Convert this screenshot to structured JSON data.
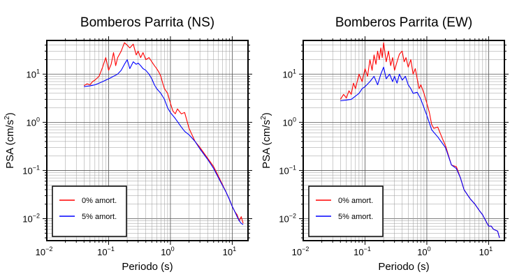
{
  "chart_data": [
    {
      "type": "line",
      "title": "Bomberos Parrita (NS)",
      "xlabel": "Periodo (s)",
      "ylabel_base": "PSA (cm/s",
      "ylabel_sup": "2",
      "ylabel_end": ")",
      "xscale": "log",
      "yscale": "log",
      "xlim": [
        0.01,
        18
      ],
      "ylim": [
        0.0035,
        50
      ],
      "grid": true,
      "legend_position": "bottom-left",
      "xticks": [
        {
          "base": "10",
          "exp": "−2",
          "value": 0.01
        },
        {
          "base": "10",
          "exp": "−1",
          "value": 0.1
        },
        {
          "base": "10",
          "exp": "0",
          "value": 1
        },
        {
          "base": "10",
          "exp": "1",
          "value": 10
        }
      ],
      "yticks": [
        {
          "base": "10",
          "exp": "−2",
          "value": 0.01
        },
        {
          "base": "10",
          "exp": "−1",
          "value": 0.1
        },
        {
          "base": "10",
          "exp": "0",
          "value": 1
        },
        {
          "base": "10",
          "exp": "1",
          "value": 10
        }
      ],
      "series": [
        {
          "name": "0% amort.",
          "color": "#ff0000",
          "x": [
            0.04,
            0.045,
            0.05,
            0.055,
            0.06,
            0.07,
            0.08,
            0.09,
            0.1,
            0.11,
            0.12,
            0.13,
            0.14,
            0.16,
            0.18,
            0.2,
            0.22,
            0.25,
            0.28,
            0.3,
            0.33,
            0.36,
            0.4,
            0.45,
            0.5,
            0.55,
            0.6,
            0.65,
            0.7,
            0.75,
            0.8,
            0.9,
            1.0,
            1.1,
            1.2,
            1.3,
            1.5,
            1.7,
            2.0,
            2.5,
            3.0,
            4.0,
            5.0,
            6.0,
            7.0,
            8.0,
            9.0,
            10.0,
            11.0,
            12.0,
            13.0,
            14.0,
            15.0
          ],
          "y": [
            5.8,
            6.3,
            6.0,
            7.0,
            7.5,
            9.0,
            14.0,
            22.0,
            12.0,
            16.0,
            28.0,
            15.0,
            22.0,
            30.0,
            45.0,
            40.0,
            35.0,
            42.0,
            25.0,
            30.0,
            22.0,
            28.0,
            20.0,
            22.0,
            18.0,
            15.0,
            13.0,
            11.0,
            9.0,
            6.5,
            5.0,
            4.0,
            2.5,
            1.7,
            1.5,
            1.9,
            1.5,
            1.6,
            0.75,
            0.4,
            0.3,
            0.18,
            0.12,
            0.075,
            0.05,
            0.035,
            0.025,
            0.018,
            0.014,
            0.012,
            0.009,
            0.011,
            0.008
          ]
        },
        {
          "name": "5% amort.",
          "color": "#0000ff",
          "x": [
            0.04,
            0.05,
            0.06,
            0.07,
            0.08,
            0.09,
            0.1,
            0.12,
            0.14,
            0.16,
            0.18,
            0.2,
            0.22,
            0.25,
            0.28,
            0.3,
            0.33,
            0.36,
            0.4,
            0.45,
            0.5,
            0.55,
            0.6,
            0.7,
            0.8,
            0.9,
            1.0,
            1.2,
            1.5,
            1.7,
            2.0,
            2.5,
            3.0,
            4.0,
            5.0,
            6.0,
            7.0,
            8.0,
            9.0,
            10.0,
            11.0,
            12.0,
            13.0,
            14.0,
            15.0
          ],
          "y": [
            5.5,
            5.7,
            6.0,
            6.5,
            7.0,
            7.5,
            8.0,
            9.0,
            10.0,
            12.0,
            16.0,
            20.0,
            13.0,
            18.0,
            16.0,
            17.0,
            15.0,
            13.0,
            12.0,
            10.0,
            8.0,
            6.0,
            5.0,
            4.0,
            3.0,
            2.0,
            1.6,
            1.2,
            0.8,
            0.65,
            0.55,
            0.4,
            0.28,
            0.17,
            0.11,
            0.07,
            0.048,
            0.035,
            0.025,
            0.018,
            0.014,
            0.011,
            0.009,
            0.008,
            0.0075
          ]
        }
      ]
    },
    {
      "type": "line",
      "title": "Bomberos Parrita (EW)",
      "xlabel": "Periodo (s)",
      "ylabel_base": "PSA (cm/s",
      "ylabel_sup": "2",
      "ylabel_end": ")",
      "xscale": "log",
      "yscale": "log",
      "xlim": [
        0.01,
        18
      ],
      "ylim": [
        0.0035,
        50
      ],
      "grid": true,
      "legend_position": "bottom-left",
      "xticks": [
        {
          "base": "10",
          "exp": "−2",
          "value": 0.01
        },
        {
          "base": "10",
          "exp": "−1",
          "value": 0.1
        },
        {
          "base": "10",
          "exp": "0",
          "value": 1
        },
        {
          "base": "10",
          "exp": "1",
          "value": 10
        }
      ],
      "yticks": [
        {
          "base": "10",
          "exp": "−2",
          "value": 0.01
        },
        {
          "base": "10",
          "exp": "−1",
          "value": 0.1
        },
        {
          "base": "10",
          "exp": "0",
          "value": 1
        },
        {
          "base": "10",
          "exp": "1",
          "value": 10
        }
      ],
      "series": [
        {
          "name": "0% amort.",
          "color": "#ff0000",
          "x": [
            0.04,
            0.045,
            0.05,
            0.055,
            0.06,
            0.065,
            0.07,
            0.08,
            0.09,
            0.1,
            0.11,
            0.12,
            0.13,
            0.14,
            0.15,
            0.16,
            0.17,
            0.18,
            0.19,
            0.2,
            0.22,
            0.24,
            0.26,
            0.28,
            0.3,
            0.33,
            0.36,
            0.4,
            0.43,
            0.46,
            0.5,
            0.55,
            0.6,
            0.65,
            0.7,
            0.75,
            0.8,
            0.9,
            1.0,
            1.1,
            1.2,
            1.3,
            1.5,
            1.8,
            2.0,
            2.5,
            3.0,
            3.5,
            4.0,
            5.0,
            6.0,
            7.0,
            8.0,
            9.0,
            10.0,
            11.0,
            12.0,
            14.0,
            15.0
          ],
          "y": [
            3.0,
            3.8,
            3.2,
            4.5,
            3.8,
            6.5,
            5.0,
            10.0,
            7.0,
            13.0,
            9.0,
            20.0,
            12.0,
            25.0,
            16.0,
            30.0,
            20.0,
            35.0,
            22.0,
            45.0,
            18.0,
            30.0,
            15.0,
            22.0,
            12.0,
            18.0,
            26.0,
            30.0,
            18.0,
            22.0,
            14.0,
            20.0,
            10.0,
            13.0,
            8.0,
            5.0,
            6.0,
            4.0,
            2.5,
            1.6,
            0.9,
            0.75,
            0.8,
            0.45,
            0.33,
            0.13,
            0.12,
            0.07,
            0.04,
            0.026,
            0.02,
            0.015,
            0.012,
            0.009,
            0.007,
            0.007,
            0.006,
            0.0055,
            0.004
          ]
        },
        {
          "name": "5% amort.",
          "color": "#0000ff",
          "x": [
            0.04,
            0.05,
            0.06,
            0.07,
            0.08,
            0.09,
            0.1,
            0.12,
            0.14,
            0.16,
            0.18,
            0.2,
            0.22,
            0.25,
            0.28,
            0.3,
            0.33,
            0.36,
            0.4,
            0.45,
            0.5,
            0.55,
            0.6,
            0.7,
            0.8,
            0.9,
            1.0,
            1.2,
            1.5,
            2.0,
            2.5,
            3.0,
            3.5,
            4.0,
            5.0,
            6.0,
            7.0,
            8.0,
            9.0,
            10.0,
            11.0,
            12.0,
            14.0,
            15.0
          ],
          "y": [
            2.8,
            2.9,
            3.0,
            3.5,
            4.0,
            5.0,
            5.5,
            7.0,
            9.0,
            6.0,
            10.0,
            14.0,
            8.0,
            10.0,
            7.0,
            9.0,
            6.5,
            10.0,
            7.5,
            9.0,
            6.0,
            5.0,
            4.0,
            4.2,
            3.0,
            2.0,
            1.4,
            0.7,
            0.5,
            0.3,
            0.13,
            0.11,
            0.07,
            0.04,
            0.026,
            0.02,
            0.015,
            0.012,
            0.009,
            0.007,
            0.007,
            0.006,
            0.0055,
            0.004
          ]
        }
      ]
    }
  ]
}
